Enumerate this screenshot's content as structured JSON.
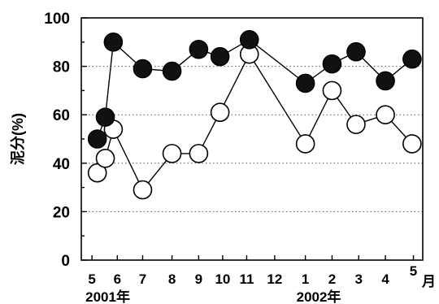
{
  "chart_data": {
    "type": "line",
    "ylabel": "泥分(%)",
    "ylim": [
      0,
      100
    ],
    "yticks": [
      0,
      20,
      40,
      60,
      80,
      100
    ],
    "grid": "horizontal dotted",
    "x_tick_labels": [
      "5",
      "6",
      "7",
      "8",
      "9",
      "10",
      "11",
      "12",
      "1",
      "2",
      "3",
      "4",
      "5"
    ],
    "x_unit": "月",
    "year_labels": [
      "2001年",
      "2002年"
    ],
    "series": [
      {
        "marker": "filled-circle",
        "color": "#111111",
        "points": [
          {
            "x": 5.2,
            "y": 50
          },
          {
            "x": 5.5,
            "y": 59
          },
          {
            "x": 5.8,
            "y": 90
          },
          {
            "x": 6.9,
            "y": 79
          },
          {
            "x": 8.0,
            "y": 78
          },
          {
            "x": 9.0,
            "y": 87
          },
          {
            "x": 9.8,
            "y": 84
          },
          {
            "x": 10.9,
            "y": 91
          },
          {
            "x": 13.0,
            "y": 73
          },
          {
            "x": 14.0,
            "y": 81
          },
          {
            "x": 14.9,
            "y": 86
          },
          {
            "x": 16.0,
            "y": 74
          },
          {
            "x": 17.0,
            "y": 83
          }
        ]
      },
      {
        "marker": "open-circle",
        "color": "#111111",
        "points": [
          {
            "x": 5.2,
            "y": 36
          },
          {
            "x": 5.5,
            "y": 42
          },
          {
            "x": 5.8,
            "y": 54
          },
          {
            "x": 6.9,
            "y": 29
          },
          {
            "x": 8.0,
            "y": 44
          },
          {
            "x": 9.0,
            "y": 44
          },
          {
            "x": 9.8,
            "y": 61
          },
          {
            "x": 10.9,
            "y": 85
          },
          {
            "x": 13.0,
            "y": 48
          },
          {
            "x": 14.0,
            "y": 70
          },
          {
            "x": 14.9,
            "y": 56
          },
          {
            "x": 16.0,
            "y": 60
          },
          {
            "x": 17.0,
            "y": 48
          }
        ]
      }
    ]
  }
}
